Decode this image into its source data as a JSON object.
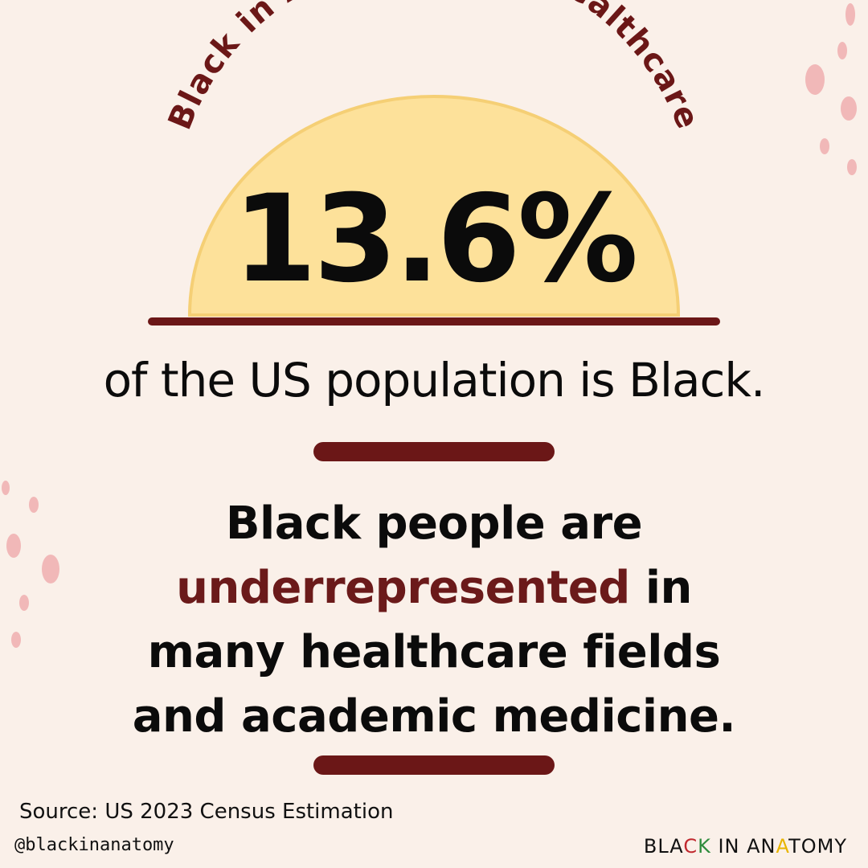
{
  "arc_title": "Black in Anatomy and Healthcare",
  "stat": {
    "value": "13.6%"
  },
  "subtitle": "of the US population is Black.",
  "message": {
    "line1": "Black people are",
    "highlight": "underrepresented",
    "line2_rest": " in",
    "line3": "many healthcare fields",
    "line4": "and academic medicine."
  },
  "source": "Source:  US 2023 Census Estimation",
  "handle": "@blackinanatomy",
  "logo": {
    "part1": "BLA",
    "part2": "C",
    "part3": "K",
    "space": " ",
    "part4": "IN",
    "space2": " ",
    "part5": "AN",
    "part6": "A",
    "part7": "TOMY"
  },
  "colors": {
    "background": "#faf0e9",
    "sun": "#fde19a",
    "maroon": "#6b1717",
    "dots": "#f1b8b8"
  }
}
